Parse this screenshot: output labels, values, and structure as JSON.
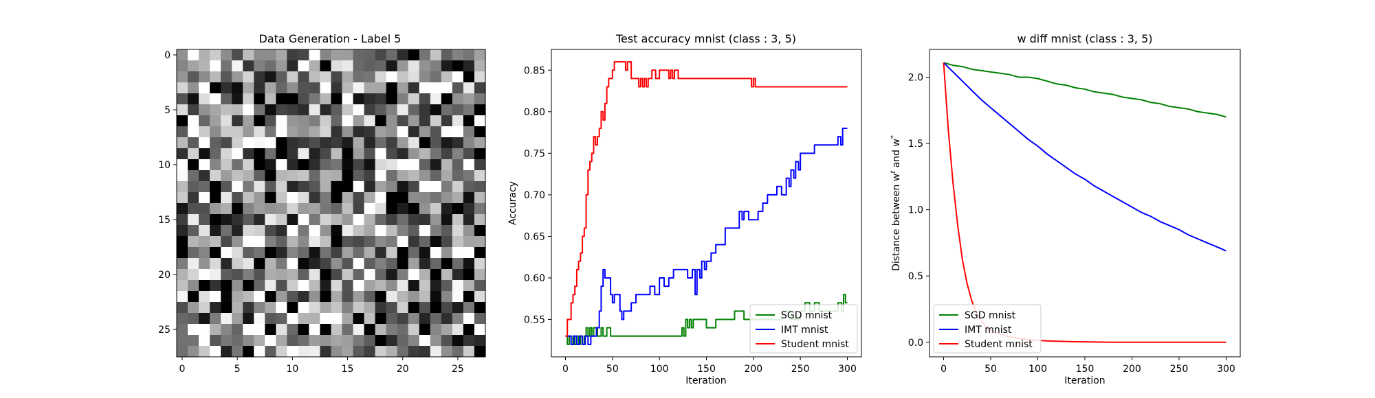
{
  "chart_data": [
    {
      "type": "heatmap",
      "title": "Data Generation - Label 5",
      "xticks": [
        0,
        5,
        10,
        15,
        20,
        25
      ],
      "yticks": [
        0,
        5,
        10,
        15,
        20,
        25
      ],
      "grid_size": 28,
      "colormap": "gray",
      "value_range": [
        0,
        1
      ],
      "description": ""
    },
    {
      "type": "line",
      "title": "Test accuracy mnist (class : 3, 5)",
      "xlabel": "Iteration",
      "ylabel": "Accuracy",
      "xlim": [
        -15,
        315
      ],
      "ylim": [
        0.505,
        0.875
      ],
      "xticks": [
        0,
        50,
        100,
        150,
        200,
        250,
        300
      ],
      "yticks": [
        0.55,
        0.6,
        0.65,
        0.7,
        0.75,
        0.8,
        0.85
      ],
      "grid": false,
      "legend_position": "lower-right",
      "series": [
        {
          "name": "SGD mnist",
          "color": "#008000",
          "x": [
            0,
            2,
            4,
            6,
            8,
            10,
            12,
            14,
            16,
            18,
            20,
            22,
            24,
            26,
            28,
            30,
            34,
            38,
            40,
            44,
            48,
            60,
            80,
            100,
            120,
            124,
            126,
            128,
            130,
            132,
            134,
            136,
            140,
            150,
            160,
            170,
            180,
            190,
            200,
            230,
            240,
            250,
            255,
            260,
            265,
            270,
            290,
            294,
            296,
            298,
            300
          ],
          "y": [
            0.53,
            0.52,
            0.53,
            0.52,
            0.53,
            0.52,
            0.53,
            0.52,
            0.53,
            0.52,
            0.53,
            0.54,
            0.53,
            0.54,
            0.53,
            0.54,
            0.53,
            0.54,
            0.53,
            0.54,
            0.53,
            0.53,
            0.53,
            0.53,
            0.53,
            0.54,
            0.53,
            0.55,
            0.54,
            0.55,
            0.54,
            0.55,
            0.55,
            0.54,
            0.55,
            0.55,
            0.56,
            0.55,
            0.55,
            0.56,
            0.55,
            0.56,
            0.57,
            0.56,
            0.57,
            0.56,
            0.57,
            0.56,
            0.58,
            0.57,
            0.57
          ]
        },
        {
          "name": "IMT mnist",
          "color": "#0000ff",
          "x": [
            0,
            3,
            6,
            9,
            12,
            15,
            18,
            21,
            24,
            27,
            30,
            33,
            36,
            38,
            40,
            42,
            44,
            46,
            48,
            50,
            52,
            55,
            58,
            60,
            62,
            65,
            70,
            75,
            80,
            85,
            90,
            95,
            100,
            105,
            110,
            115,
            120,
            125,
            130,
            135,
            138,
            140,
            143,
            145,
            148,
            150,
            155,
            160,
            165,
            170,
            175,
            180,
            185,
            188,
            190,
            195,
            200,
            205,
            210,
            215,
            220,
            225,
            230,
            235,
            238,
            240,
            243,
            245,
            248,
            250,
            255,
            260,
            265,
            270,
            275,
            280,
            285,
            290,
            293,
            295,
            298,
            300
          ],
          "y": [
            0.53,
            0.53,
            0.52,
            0.53,
            0.52,
            0.53,
            0.52,
            0.53,
            0.52,
            0.53,
            0.53,
            0.54,
            0.56,
            0.59,
            0.61,
            0.6,
            0.6,
            0.6,
            0.58,
            0.57,
            0.58,
            0.58,
            0.56,
            0.55,
            0.56,
            0.56,
            0.57,
            0.58,
            0.58,
            0.58,
            0.59,
            0.58,
            0.6,
            0.59,
            0.6,
            0.61,
            0.61,
            0.61,
            0.6,
            0.61,
            0.58,
            0.61,
            0.6,
            0.62,
            0.61,
            0.62,
            0.63,
            0.64,
            0.64,
            0.66,
            0.66,
            0.66,
            0.68,
            0.67,
            0.68,
            0.67,
            0.67,
            0.68,
            0.69,
            0.7,
            0.7,
            0.71,
            0.7,
            0.72,
            0.71,
            0.73,
            0.72,
            0.74,
            0.73,
            0.75,
            0.75,
            0.75,
            0.76,
            0.76,
            0.76,
            0.76,
            0.76,
            0.77,
            0.76,
            0.78,
            0.78,
            0.78
          ]
        },
        {
          "name": "Student mnist",
          "color": "#ff0000",
          "x": [
            0,
            2,
            4,
            6,
            8,
            10,
            12,
            14,
            16,
            18,
            20,
            22,
            24,
            26,
            28,
            30,
            32,
            34,
            36,
            38,
            40,
            42,
            44,
            46,
            48,
            50,
            52,
            54,
            56,
            58,
            60,
            62,
            64,
            66,
            70,
            74,
            78,
            80,
            82,
            84,
            86,
            88,
            90,
            92,
            96,
            100,
            104,
            108,
            110,
            112,
            114,
            116,
            120,
            130,
            140,
            150,
            160,
            170,
            180,
            190,
            196,
            198,
            200,
            202,
            210,
            220,
            240,
            260,
            280,
            300
          ],
          "y": [
            0.53,
            0.55,
            0.55,
            0.57,
            0.58,
            0.59,
            0.61,
            0.62,
            0.63,
            0.65,
            0.66,
            0.7,
            0.73,
            0.74,
            0.75,
            0.77,
            0.76,
            0.77,
            0.78,
            0.8,
            0.79,
            0.81,
            0.83,
            0.84,
            0.84,
            0.85,
            0.86,
            0.86,
            0.86,
            0.86,
            0.86,
            0.86,
            0.85,
            0.86,
            0.84,
            0.84,
            0.83,
            0.84,
            0.83,
            0.84,
            0.83,
            0.84,
            0.84,
            0.85,
            0.84,
            0.85,
            0.85,
            0.85,
            0.84,
            0.85,
            0.84,
            0.85,
            0.84,
            0.84,
            0.84,
            0.84,
            0.84,
            0.84,
            0.84,
            0.84,
            0.84,
            0.83,
            0.84,
            0.83,
            0.83,
            0.83,
            0.83,
            0.83,
            0.83,
            0.83
          ]
        }
      ]
    },
    {
      "type": "line",
      "title": "w diff mnist (class : 3, 5)",
      "xlabel": "Iteration",
      "ylabel_prefix": "Distance between w",
      "ylabel_sup1": "t",
      "ylabel_mid": " and w",
      "ylabel_sup2": "*",
      "xlim": [
        -15,
        315
      ],
      "ylim": [
        -0.11,
        2.21
      ],
      "xticks": [
        0,
        50,
        100,
        150,
        200,
        250,
        300
      ],
      "yticks": [
        0.0,
        0.5,
        1.0,
        1.5,
        2.0
      ],
      "grid": false,
      "legend_position": "lower-left",
      "series": [
        {
          "name": "SGD mnist",
          "color": "#008000",
          "x": [
            0,
            10,
            20,
            30,
            40,
            50,
            60,
            70,
            80,
            90,
            100,
            110,
            120,
            130,
            140,
            150,
            160,
            170,
            180,
            190,
            200,
            210,
            220,
            230,
            240,
            250,
            260,
            270,
            280,
            290,
            300
          ],
          "y": [
            2.11,
            2.09,
            2.08,
            2.06,
            2.05,
            2.04,
            2.03,
            2.02,
            2.0,
            2.0,
            1.99,
            1.97,
            1.95,
            1.94,
            1.92,
            1.91,
            1.89,
            1.88,
            1.87,
            1.85,
            1.84,
            1.83,
            1.81,
            1.8,
            1.78,
            1.77,
            1.76,
            1.74,
            1.73,
            1.72,
            1.7
          ]
        },
        {
          "name": "IMT mnist",
          "color": "#0000ff",
          "x": [
            0,
            10,
            20,
            30,
            40,
            50,
            60,
            70,
            80,
            90,
            100,
            110,
            120,
            130,
            140,
            150,
            160,
            170,
            180,
            190,
            200,
            210,
            220,
            230,
            240,
            250,
            260,
            270,
            280,
            290,
            300
          ],
          "y": [
            2.11,
            2.04,
            1.97,
            1.9,
            1.83,
            1.77,
            1.71,
            1.65,
            1.59,
            1.53,
            1.48,
            1.42,
            1.37,
            1.32,
            1.27,
            1.23,
            1.18,
            1.14,
            1.1,
            1.06,
            1.02,
            0.98,
            0.95,
            0.91,
            0.88,
            0.85,
            0.81,
            0.78,
            0.75,
            0.72,
            0.69
          ]
        },
        {
          "name": "Student mnist",
          "color": "#ff0000",
          "x": [
            0,
            5,
            10,
            15,
            20,
            25,
            30,
            35,
            40,
            45,
            50,
            55,
            60,
            70,
            80,
            90,
            100,
            110,
            120,
            140,
            160,
            180,
            200,
            250,
            300
          ],
          "y": [
            2.11,
            1.6,
            1.2,
            0.88,
            0.62,
            0.44,
            0.31,
            0.22,
            0.16,
            0.12,
            0.09,
            0.07,
            0.06,
            0.04,
            0.03,
            0.02,
            0.015,
            0.01,
            0.008,
            0.004,
            0.002,
            0.0,
            0.0,
            0.0,
            0.0
          ]
        }
      ]
    }
  ]
}
